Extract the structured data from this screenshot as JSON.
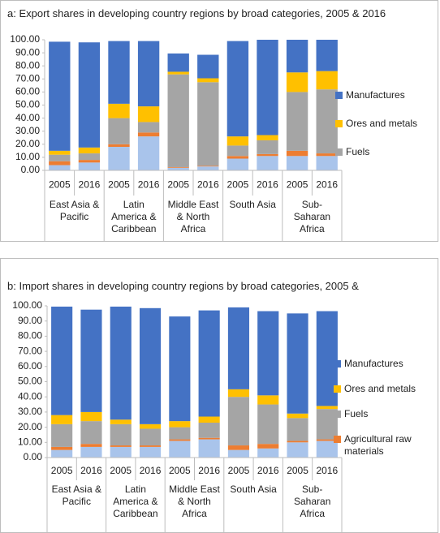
{
  "chart_data": [
    {
      "type": "stacked-bar",
      "title": "a: Export shares in developing country regions by broad categories, 2005 & 2016",
      "categories": [
        "2005",
        "2016",
        "2005",
        "2016",
        "2005",
        "2016",
        "2005",
        "2016",
        "2005",
        "2016"
      ],
      "groups": [
        "East Asia & Pacific",
        "Latin America & Caribbean",
        "Middle East & North Africa",
        "South Asia",
        "Sub-Saharan Africa"
      ],
      "series": [
        {
          "color": "#a9c4eb",
          "values": [
            4,
            6,
            18,
            26,
            2,
            3,
            9,
            11,
            11,
            11
          ]
        },
        {
          "color": "#ed7d31",
          "values": [
            3,
            2,
            2,
            3,
            0.5,
            0.5,
            2,
            1.5,
            4,
            2
          ]
        },
        {
          "name": "Fuels",
          "color": "#a5a5a5",
          "values": [
            5,
            5,
            20,
            8,
            71,
            64,
            8,
            10.5,
            45,
            49
          ]
        },
        {
          "name": "Ores and metals",
          "color": "#ffc000",
          "values": [
            3,
            4.5,
            11,
            12,
            2,
            3,
            7,
            4,
            15,
            14
          ]
        },
        {
          "name": "Manufactures",
          "color": "#4472c4",
          "values": [
            83.5,
            80.5,
            48,
            50,
            14,
            18,
            73,
            73,
            25,
            24
          ]
        }
      ],
      "ylim": [
        0,
        100
      ],
      "yticks": [
        {
          "value": 0,
          "label": "0.00"
        },
        {
          "value": 10,
          "label": "10.00"
        },
        {
          "value": 20,
          "label": "20.00"
        },
        {
          "value": 30,
          "label": "30.00"
        },
        {
          "value": 40,
          "label": "40.00"
        },
        {
          "value": 50,
          "label": "50.00"
        },
        {
          "value": 60,
          "label": "60.00"
        },
        {
          "value": 70,
          "label": "70.00"
        },
        {
          "value": 80,
          "label": "80.00"
        },
        {
          "value": 90,
          "label": "90.00"
        },
        {
          "value": 100,
          "label": "100.00"
        }
      ],
      "grid": false,
      "legend": "right"
    },
    {
      "type": "stacked-bar",
      "title": "b: Import shares in developing country regions by broad categories, 2005 &",
      "categories": [
        "2005",
        "2016",
        "2005",
        "2016",
        "2005",
        "2016",
        "2005",
        "2016",
        "2005",
        "2016"
      ],
      "groups": [
        "East Asia & Pacific",
        "Latin America & Caribbean",
        "Middle East & North Africa",
        "South Asia",
        "Sub-Saharan Africa"
      ],
      "series": [
        {
          "color": "#a9c4eb",
          "values": [
            5,
            7,
            7,
            7,
            11,
            12,
            5,
            6,
            10,
            11
          ]
        },
        {
          "name": "Agricultural raw materials",
          "color": "#ed7d31",
          "values": [
            2,
            2,
            1,
            1,
            1,
            1,
            3,
            3,
            1,
            1
          ]
        },
        {
          "name": "Fuels",
          "color": "#a5a5a5",
          "values": [
            15,
            15,
            14,
            11,
            8,
            10,
            32,
            26,
            15,
            20
          ]
        },
        {
          "name": "Ores and metals",
          "color": "#ffc000",
          "values": [
            6,
            6,
            3,
            3,
            4,
            4,
            5,
            6,
            3,
            2
          ]
        },
        {
          "name": "Manufactures",
          "color": "#4472c4",
          "values": [
            71.5,
            67.5,
            74.5,
            76.5,
            69,
            70,
            54,
            55.5,
            66,
            62.5
          ]
        }
      ],
      "ylim": [
        0,
        100
      ],
      "yticks": [
        {
          "value": 0,
          "label": "0.00"
        },
        {
          "value": 10,
          "label": "10.00"
        },
        {
          "value": 20,
          "label": "20.00"
        },
        {
          "value": 30,
          "label": "30.00"
        },
        {
          "value": 40,
          "label": "40.00"
        },
        {
          "value": 50,
          "label": "50.00"
        },
        {
          "value": 60,
          "label": "60.00"
        },
        {
          "value": 70,
          "label": "70.00"
        },
        {
          "value": 80,
          "label": "80.00"
        },
        {
          "value": 90,
          "label": "90.00"
        },
        {
          "value": 100,
          "label": "100.00"
        }
      ],
      "grid": false,
      "legend": "right"
    }
  ]
}
